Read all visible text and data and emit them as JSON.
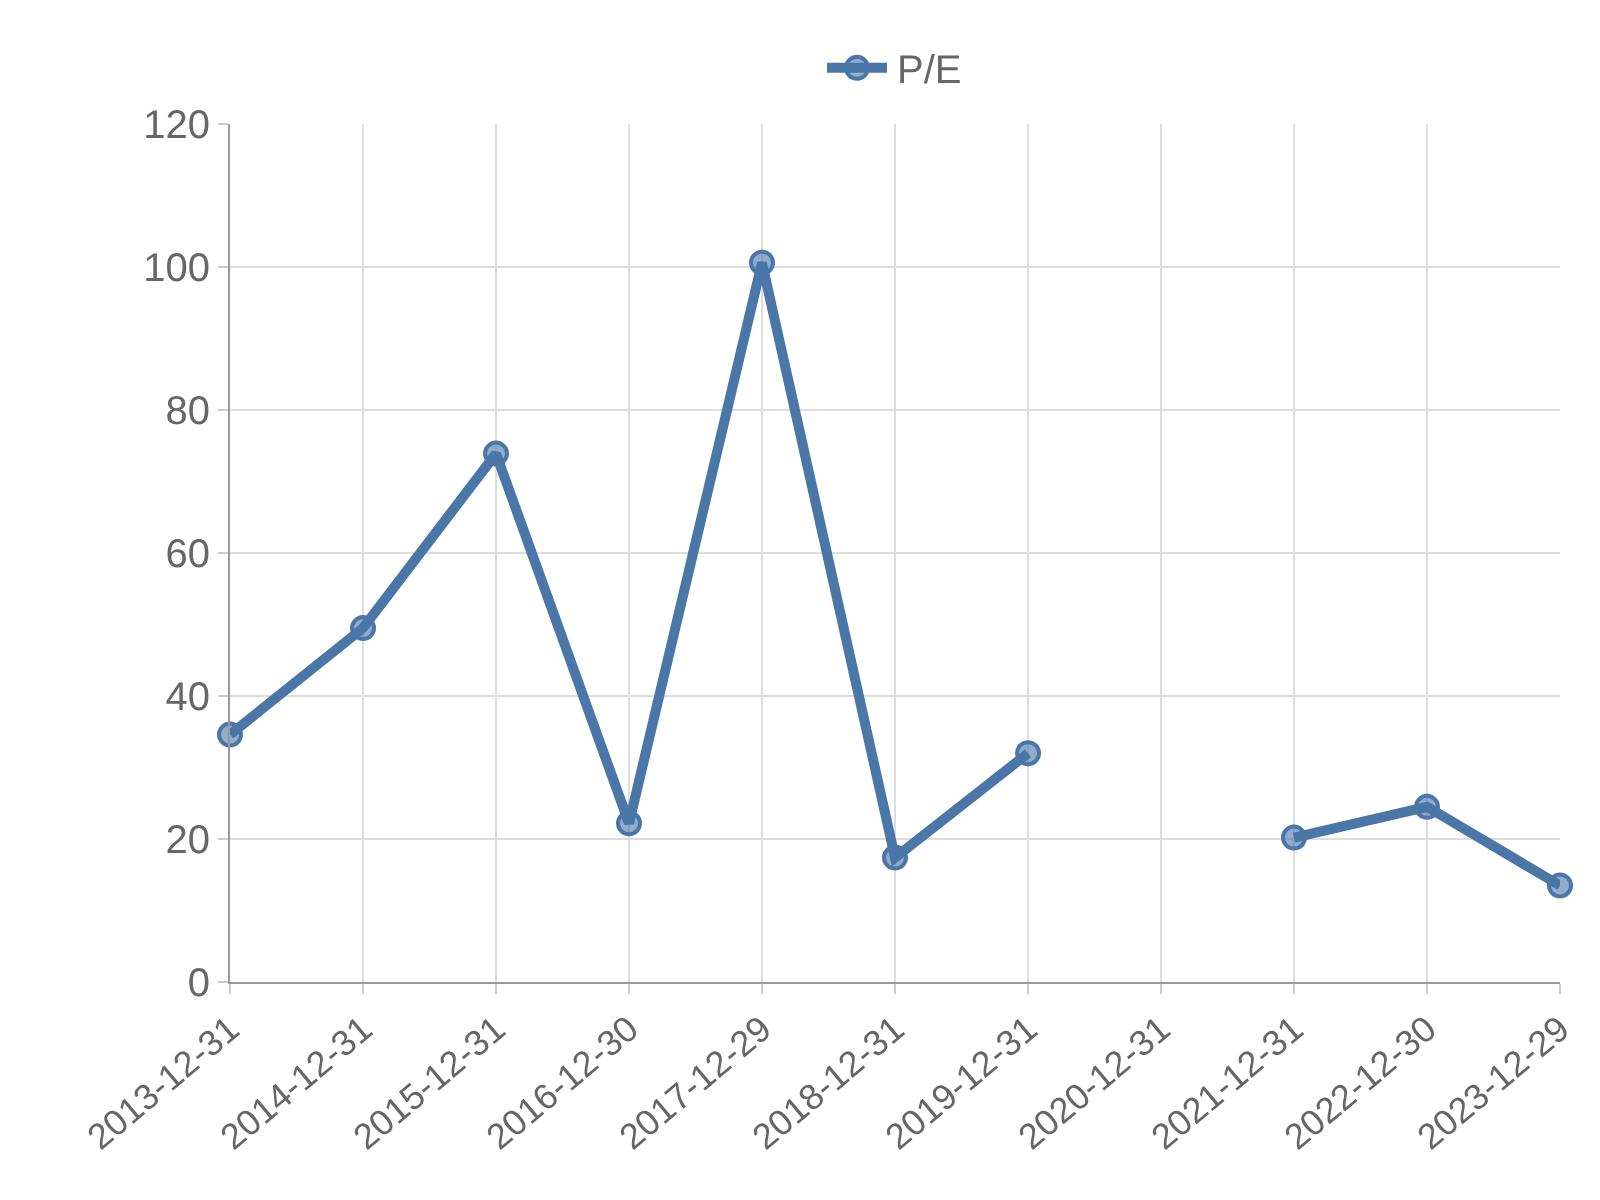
{
  "chart_data": {
    "type": "line",
    "categories": [
      "2013-12-31",
      "2014-12-31",
      "2015-12-31",
      "2016-12-30",
      "2017-12-29",
      "2018-12-31",
      "2019-12-31",
      "2020-12-31",
      "2021-12-31",
      "2022-12-30",
      "2023-12-29"
    ],
    "series": [
      {
        "name": "P/E",
        "color": "#4a76a8",
        "values": [
          34.6,
          49.5,
          73.9,
          22.2,
          100.6,
          17.4,
          32.0,
          null,
          20.2,
          24.5,
          13.5
        ]
      }
    ],
    "ylim": [
      0,
      120
    ],
    "yticks": [
      0,
      20,
      40,
      60,
      80,
      100,
      120
    ],
    "grid": true,
    "legend": "top",
    "marker": "circle",
    "line_style": "solid"
  }
}
